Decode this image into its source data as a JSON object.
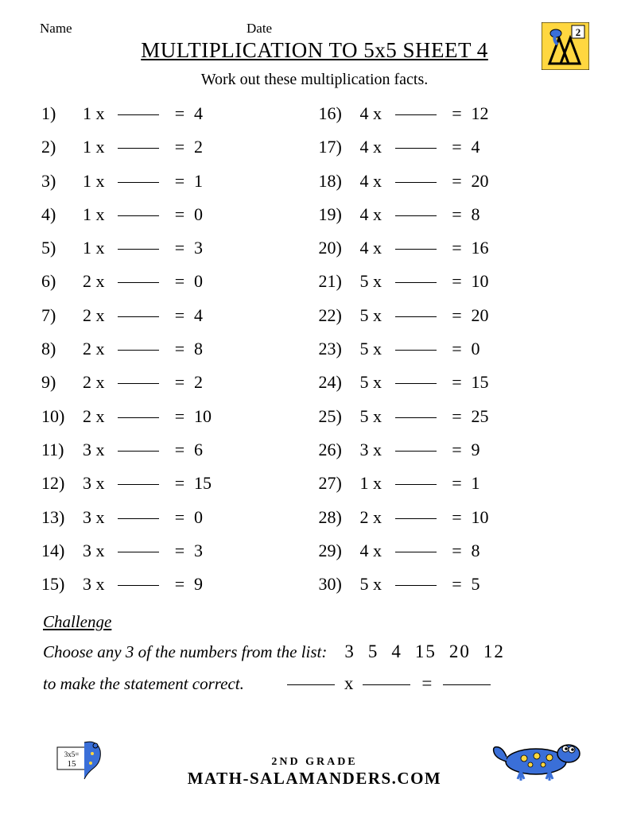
{
  "header": {
    "name_label": "Name",
    "date_label": "Date"
  },
  "title": "MULTIPLICATION TO 5x5 SHEET 4",
  "instruction": "Work out these multiplication facts.",
  "colors": {
    "text": "#000000",
    "background": "#ffffff",
    "logo_yellow": "#ffd740",
    "logo_black": "#000000",
    "salamander_blue": "#3a6fd8",
    "salamander_spots": "#ffd740"
  },
  "fontsize": {
    "title": 27,
    "instruction": 20,
    "problem": 22,
    "challenge": 21
  },
  "problems_left": [
    {
      "n": "1)",
      "a": "1",
      "r": "4"
    },
    {
      "n": "2)",
      "a": "1",
      "r": "2"
    },
    {
      "n": "3)",
      "a": "1",
      "r": "1"
    },
    {
      "n": "4)",
      "a": "1",
      "r": "0"
    },
    {
      "n": "5)",
      "a": "1",
      "r": "3"
    },
    {
      "n": "6)",
      "a": "2",
      "r": "0"
    },
    {
      "n": "7)",
      "a": "2",
      "r": "4"
    },
    {
      "n": "8)",
      "a": "2",
      "r": "8"
    },
    {
      "n": "9)",
      "a": "2",
      "r": "2"
    },
    {
      "n": "10)",
      "a": "2",
      "r": "10"
    },
    {
      "n": "11)",
      "a": "3",
      "r": "6"
    },
    {
      "n": "12)",
      "a": "3",
      "r": "15"
    },
    {
      "n": "13)",
      "a": "3",
      "r": "0"
    },
    {
      "n": "14)",
      "a": "3",
      "r": "3"
    },
    {
      "n": "15)",
      "a": "3",
      "r": "9"
    }
  ],
  "problems_right": [
    {
      "n": "16)",
      "a": "4",
      "r": "12"
    },
    {
      "n": "17)",
      "a": "4",
      "r": "4"
    },
    {
      "n": "18)",
      "a": "4",
      "r": "20"
    },
    {
      "n": "19)",
      "a": "4",
      "r": "8"
    },
    {
      "n": "20)",
      "a": "4",
      "r": "16"
    },
    {
      "n": "21)",
      "a": "5",
      "r": "10"
    },
    {
      "n": "22)",
      "a": "5",
      "r": "20"
    },
    {
      "n": "23)",
      "a": "5",
      "r": "0"
    },
    {
      "n": "24)",
      "a": "5",
      "r": "15"
    },
    {
      "n": "25)",
      "a": "5",
      "r": "25"
    },
    {
      "n": "26)",
      "a": "3",
      "r": "9"
    },
    {
      "n": "27)",
      "a": "1",
      "r": "1"
    },
    {
      "n": "28)",
      "a": "2",
      "r": "10"
    },
    {
      "n": "29)",
      "a": "4",
      "r": "8"
    },
    {
      "n": "30)",
      "a": "5",
      "r": "5"
    }
  ],
  "challenge": {
    "title": "Challenge",
    "line1": "Choose any 3 of the numbers from the list:",
    "numbers": [
      "3",
      "5",
      "4",
      "15",
      "20",
      "12"
    ],
    "line2": "to make the statement correct.",
    "x": "x",
    "eq": "="
  },
  "footer": {
    "grade": "2ND GRADE",
    "site": "MATH-SALAMANDERS.COM"
  },
  "logo_badge_text": "2"
}
